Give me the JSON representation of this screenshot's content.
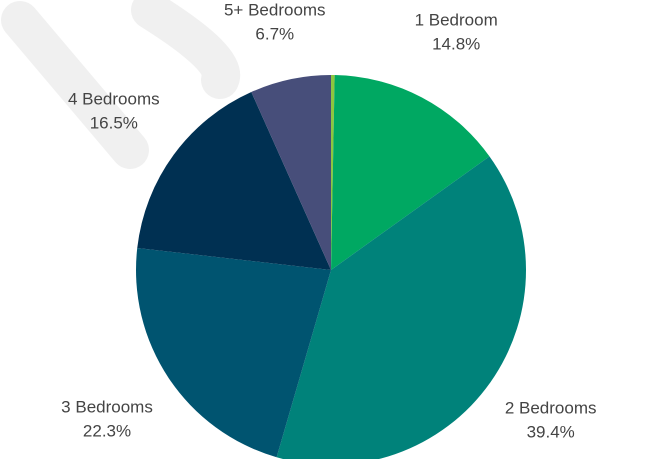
{
  "chart_data": {
    "type": "pie",
    "categories": [
      null,
      "1 Bedroom",
      "2 Bedrooms",
      "3 Bedrooms",
      "4 Bedrooms",
      "5+ Bedrooms"
    ],
    "values": [
      0.3,
      14.8,
      39.4,
      22.3,
      16.5,
      6.7
    ],
    "value_labels": [
      null,
      "14.8%",
      "39.4%",
      "22.3%",
      "16.5%",
      "6.7%"
    ],
    "colors": [
      "#8dc63f",
      "#00a862",
      "#00827a",
      "#005470",
      "#003052",
      "#474e7a"
    ]
  }
}
